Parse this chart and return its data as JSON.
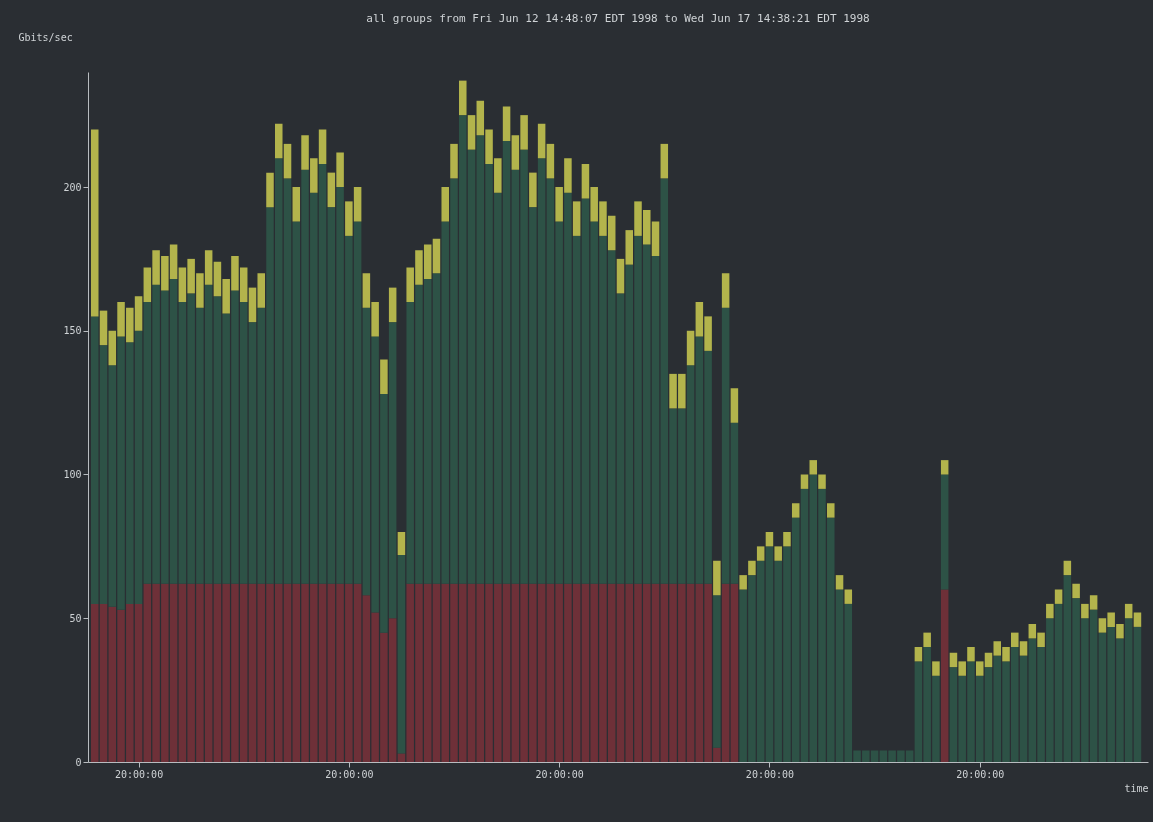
{
  "chart_data": {
    "type": "bar",
    "stacked": true,
    "title": "all groups from Fri Jun 12 14:48:07 EDT 1998 to Wed Jun 17 14:38:21 EDT 1998",
    "xlabel": "time",
    "ylabel": "Gbits/sec",
    "x": [
      "1998-06-12T15:00",
      "1998-06-12T16:00",
      "1998-06-12T17:00",
      "1998-06-12T18:00",
      "1998-06-12T19:00",
      "1998-06-12T20:00",
      "1998-06-12T21:00",
      "1998-06-12T22:00",
      "1998-06-12T23:00",
      "1998-06-13T00:00",
      "1998-06-13T01:00",
      "1998-06-13T02:00",
      "1998-06-13T03:00",
      "1998-06-13T04:00",
      "1998-06-13T05:00",
      "1998-06-13T06:00",
      "1998-06-13T07:00",
      "1998-06-13T08:00",
      "1998-06-13T09:00",
      "1998-06-13T10:00",
      "1998-06-13T11:00",
      "1998-06-13T12:00",
      "1998-06-13T13:00",
      "1998-06-13T14:00",
      "1998-06-13T15:00",
      "1998-06-13T16:00",
      "1998-06-13T17:00",
      "1998-06-13T18:00",
      "1998-06-13T19:00",
      "1998-06-13T20:00",
      "1998-06-13T21:00",
      "1998-06-13T22:00",
      "1998-06-13T23:00",
      "1998-06-14T00:00",
      "1998-06-14T01:00",
      "1998-06-14T02:00",
      "1998-06-14T03:00",
      "1998-06-14T04:00",
      "1998-06-14T05:00",
      "1998-06-14T06:00",
      "1998-06-14T07:00",
      "1998-06-14T08:00",
      "1998-06-14T09:00",
      "1998-06-14T10:00",
      "1998-06-14T11:00",
      "1998-06-14T12:00",
      "1998-06-14T13:00",
      "1998-06-14T14:00",
      "1998-06-14T15:00",
      "1998-06-14T16:00",
      "1998-06-14T17:00",
      "1998-06-14T18:00",
      "1998-06-14T19:00",
      "1998-06-14T20:00",
      "1998-06-14T21:00",
      "1998-06-14T22:00",
      "1998-06-14T23:00",
      "1998-06-15T00:00",
      "1998-06-15T01:00",
      "1998-06-15T02:00",
      "1998-06-15T03:00",
      "1998-06-15T04:00",
      "1998-06-15T05:00",
      "1998-06-15T06:00",
      "1998-06-15T07:00",
      "1998-06-15T08:00",
      "1998-06-15T09:00",
      "1998-06-15T10:00",
      "1998-06-15T11:00",
      "1998-06-15T12:00",
      "1998-06-15T13:00",
      "1998-06-15T14:00",
      "1998-06-15T15:00",
      "1998-06-15T16:00",
      "1998-06-15T17:00",
      "1998-06-15T18:00",
      "1998-06-15T19:00",
      "1998-06-15T20:00",
      "1998-06-15T21:00",
      "1998-06-15T22:00",
      "1998-06-15T23:00",
      "1998-06-16T00:00",
      "1998-06-16T01:00",
      "1998-06-16T02:00",
      "1998-06-16T03:00",
      "1998-06-16T04:00",
      "1998-06-16T05:00",
      "1998-06-16T06:00",
      "1998-06-16T07:00",
      "1998-06-16T08:00",
      "1998-06-16T09:00",
      "1998-06-16T10:00",
      "1998-06-16T11:00",
      "1998-06-16T12:00",
      "1998-06-16T13:00",
      "1998-06-16T14:00",
      "1998-06-16T15:00",
      "1998-06-16T16:00",
      "1998-06-16T17:00",
      "1998-06-16T18:00",
      "1998-06-16T19:00",
      "1998-06-16T20:00",
      "1998-06-16T21:00",
      "1998-06-16T22:00",
      "1998-06-16T23:00",
      "1998-06-17T00:00",
      "1998-06-17T01:00",
      "1998-06-17T02:00",
      "1998-06-17T03:00",
      "1998-06-17T04:00",
      "1998-06-17T05:00",
      "1998-06-17T06:00",
      "1998-06-17T07:00",
      "1998-06-17T08:00",
      "1998-06-17T09:00",
      "1998-06-17T10:00",
      "1998-06-17T11:00",
      "1998-06-17T12:00",
      "1998-06-17T13:00",
      "1998-06-17T14:00"
    ],
    "xlim": [
      "1998-06-12T14:48",
      "1998-06-17T14:38"
    ],
    "xticks": [
      {
        "value": "1998-06-12T20:00",
        "label": "20:00:00"
      },
      {
        "value": "1998-06-13T20:00",
        "label": "20:00:00"
      },
      {
        "value": "1998-06-14T20:00",
        "label": "20:00:00"
      },
      {
        "value": "1998-06-15T20:00",
        "label": "20:00:00"
      },
      {
        "value": "1998-06-16T20:00",
        "label": "20:00:00"
      }
    ],
    "ylim": [
      0,
      240
    ],
    "yticks": [
      0,
      50,
      100,
      150,
      200
    ],
    "series": [
      {
        "color": "#6e3038",
        "values": [
          55,
          55,
          54,
          53,
          55,
          55,
          62,
          62,
          62,
          62,
          62,
          62,
          62,
          62,
          62,
          62,
          62,
          62,
          62,
          62,
          62,
          62,
          62,
          62,
          62,
          62,
          62,
          62,
          62,
          62,
          62,
          58,
          52,
          45,
          50,
          3,
          62,
          62,
          62,
          62,
          62,
          62,
          62,
          62,
          62,
          62,
          62,
          62,
          62,
          62,
          62,
          62,
          62,
          62,
          62,
          62,
          62,
          62,
          62,
          62,
          62,
          62,
          62,
          62,
          62,
          62,
          62,
          62,
          62,
          62,
          62,
          5,
          62,
          62,
          0,
          0,
          0,
          0,
          0,
          0,
          0,
          0,
          0,
          0,
          0,
          0,
          0,
          0,
          0,
          0,
          0,
          0,
          0,
          0,
          0,
          0,
          0,
          60,
          0,
          0,
          0,
          0,
          0,
          0,
          0,
          0,
          0,
          0,
          0,
          0,
          0,
          0,
          0,
          0,
          0,
          0,
          0,
          0,
          0,
          0
        ]
      },
      {
        "color": "#2d5246",
        "values": [
          100,
          90,
          84,
          95,
          91,
          95,
          98,
          104,
          102,
          106,
          98,
          101,
          96,
          104,
          100,
          94,
          102,
          98,
          91,
          96,
          131,
          148,
          141,
          126,
          144,
          136,
          146,
          131,
          138,
          121,
          126,
          100,
          96,
          83,
          103,
          69,
          98,
          104,
          106,
          108,
          126,
          141,
          163,
          151,
          156,
          146,
          136,
          154,
          144,
          151,
          131,
          148,
          141,
          126,
          136,
          121,
          134,
          126,
          121,
          116,
          101,
          111,
          121,
          118,
          114,
          141,
          61,
          61,
          76,
          86,
          81,
          53,
          96,
          56,
          60,
          65,
          70,
          75,
          70,
          75,
          85,
          95,
          100,
          95,
          85,
          60,
          55,
          4,
          4,
          4,
          4,
          4,
          4,
          4,
          35,
          40,
          30,
          40,
          33,
          30,
          35,
          30,
          33,
          37,
          35,
          40,
          37,
          43,
          40,
          50,
          55,
          65,
          57,
          50,
          53,
          45,
          47,
          43,
          50,
          47
        ]
      },
      {
        "color": "#b3b44c",
        "values": [
          65,
          12,
          12,
          12,
          12,
          12,
          12,
          12,
          12,
          12,
          12,
          12,
          12,
          12,
          12,
          12,
          12,
          12,
          12,
          12,
          12,
          12,
          12,
          12,
          12,
          12,
          12,
          12,
          12,
          12,
          12,
          12,
          12,
          12,
          12,
          8,
          12,
          12,
          12,
          12,
          12,
          12,
          12,
          12,
          12,
          12,
          12,
          12,
          12,
          12,
          12,
          12,
          12,
          12,
          12,
          12,
          12,
          12,
          12,
          12,
          12,
          12,
          12,
          12,
          12,
          12,
          12,
          12,
          12,
          12,
          12,
          12,
          12,
          12,
          5,
          5,
          5,
          5,
          5,
          5,
          5,
          5,
          5,
          5,
          5,
          5,
          5,
          0,
          0,
          0,
          0,
          0,
          0,
          0,
          5,
          5,
          5,
          5,
          5,
          5,
          5,
          5,
          5,
          5,
          5,
          5,
          5,
          5,
          5,
          5,
          5,
          5,
          5,
          5,
          5,
          5,
          5,
          5,
          5,
          5
        ]
      }
    ]
  }
}
